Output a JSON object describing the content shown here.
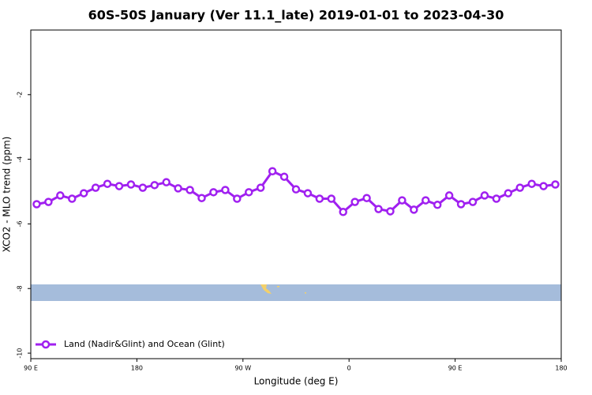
{
  "chart_data": {
    "type": "line",
    "title": "60S-50S January (Ver 11.1_late)   2019-01-01 to 2023-04-30",
    "x_label": "Longitude (deg E)",
    "y_label": "XCO2 - MLO trend (ppm)",
    "x": [
      95,
      105,
      115,
      125,
      135,
      145,
      155,
      165,
      175,
      185,
      195,
      205,
      215,
      225,
      235,
      245,
      255,
      265,
      275,
      285,
      295,
      305,
      315,
      325,
      335,
      345,
      355,
      365,
      375,
      385,
      395,
      405,
      415,
      425,
      435,
      445,
      455,
      465,
      475,
      485,
      495,
      505,
      515,
      525,
      535
    ],
    "series": [
      {
        "name": "Land (Nadir&Glint) and Ocean (Glint)",
        "color": "#a020f0",
        "values": [
          -5.39,
          -5.32,
          -5.12,
          -5.22,
          -5.05,
          -4.88,
          -4.76,
          -4.83,
          -4.78,
          -4.88,
          -4.8,
          -4.71,
          -4.9,
          -4.95,
          -5.2,
          -5.02,
          -4.95,
          -5.22,
          -5.02,
          -4.88,
          -4.37,
          -4.54,
          -4.93,
          -5.05,
          -5.22,
          -5.22,
          -5.63,
          -5.32,
          -5.2,
          -5.54,
          -5.61,
          -5.27,
          -5.56,
          -5.27,
          -5.41,
          -5.12,
          -5.39,
          -5.32,
          -5.12,
          -5.22,
          -5.05,
          -4.88,
          -4.76,
          -4.83,
          -4.78
        ]
      }
    ],
    "xlim": [
      90,
      540
    ],
    "xticks": [
      {
        "value": 90,
        "label": "90 E"
      },
      180,
      {
        "value": 270,
        "label": "90 W"
      },
      {
        "value": 360,
        "label": "0"
      },
      {
        "value": 450,
        "label": "90 E"
      },
      {
        "value": 540,
        "label": "180"
      }
    ],
    "ylim": [
      -10.17,
      0
    ],
    "yticks": [
      -2,
      -4,
      -6,
      -8,
      -10
    ],
    "legend": "bottom-left"
  }
}
